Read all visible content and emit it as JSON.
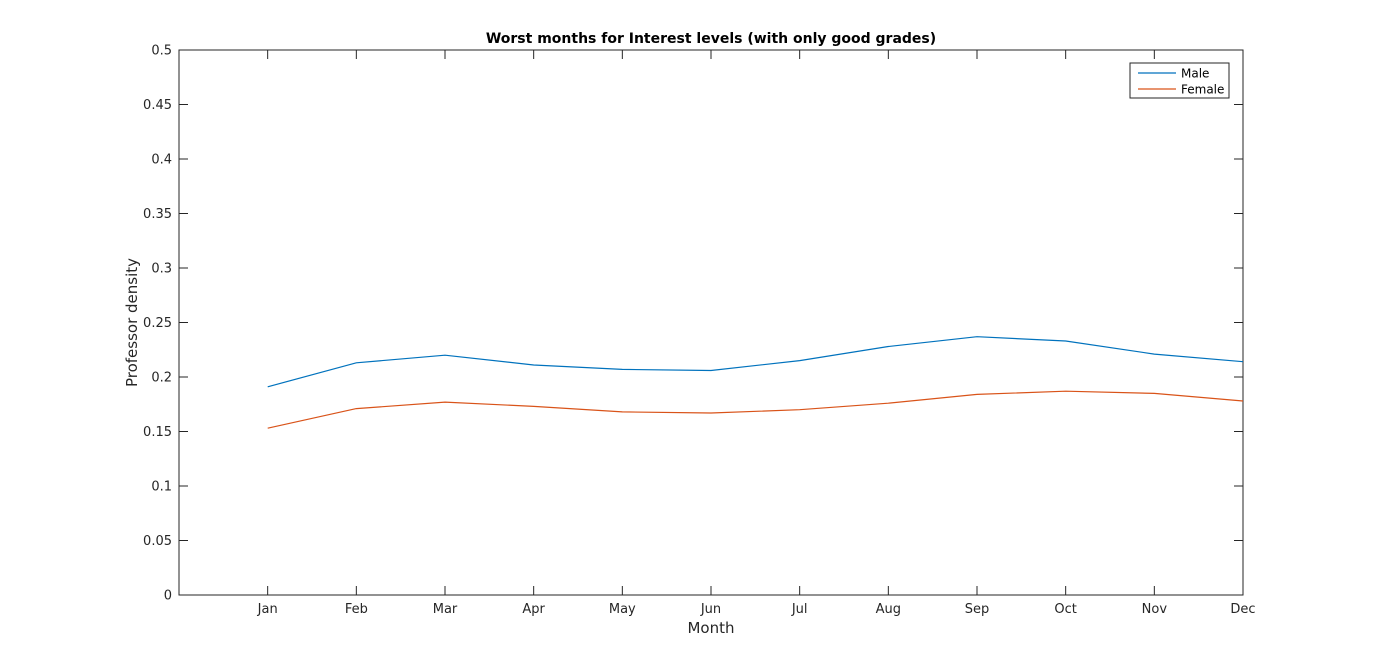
{
  "chart_data": {
    "type": "line",
    "title": "Worst months for Interest levels (with only good grades)",
    "xlabel": "Month",
    "ylabel": "Professor density",
    "categories": [
      "Jan",
      "Feb",
      "Mar",
      "Apr",
      "May",
      "Jun",
      "Jul",
      "Aug",
      "Sep",
      "Oct",
      "Nov",
      "Dec"
    ],
    "ylim": [
      0,
      0.5
    ],
    "yticks": [
      "0",
      "0.05",
      "0.1",
      "0.15",
      "0.2",
      "0.25",
      "0.3",
      "0.35",
      "0.4",
      "0.45",
      "0.5"
    ],
    "grid": false,
    "legend_position": "top-right",
    "series": [
      {
        "name": "Male",
        "color": "#0072BD",
        "values": [
          0.191,
          0.213,
          0.22,
          0.211,
          0.207,
          0.206,
          0.215,
          0.228,
          0.237,
          0.233,
          0.221,
          0.214
        ]
      },
      {
        "name": "Female",
        "color": "#D95319",
        "values": [
          0.153,
          0.171,
          0.177,
          0.173,
          0.168,
          0.167,
          0.17,
          0.176,
          0.184,
          0.187,
          0.185,
          0.178
        ]
      }
    ]
  }
}
